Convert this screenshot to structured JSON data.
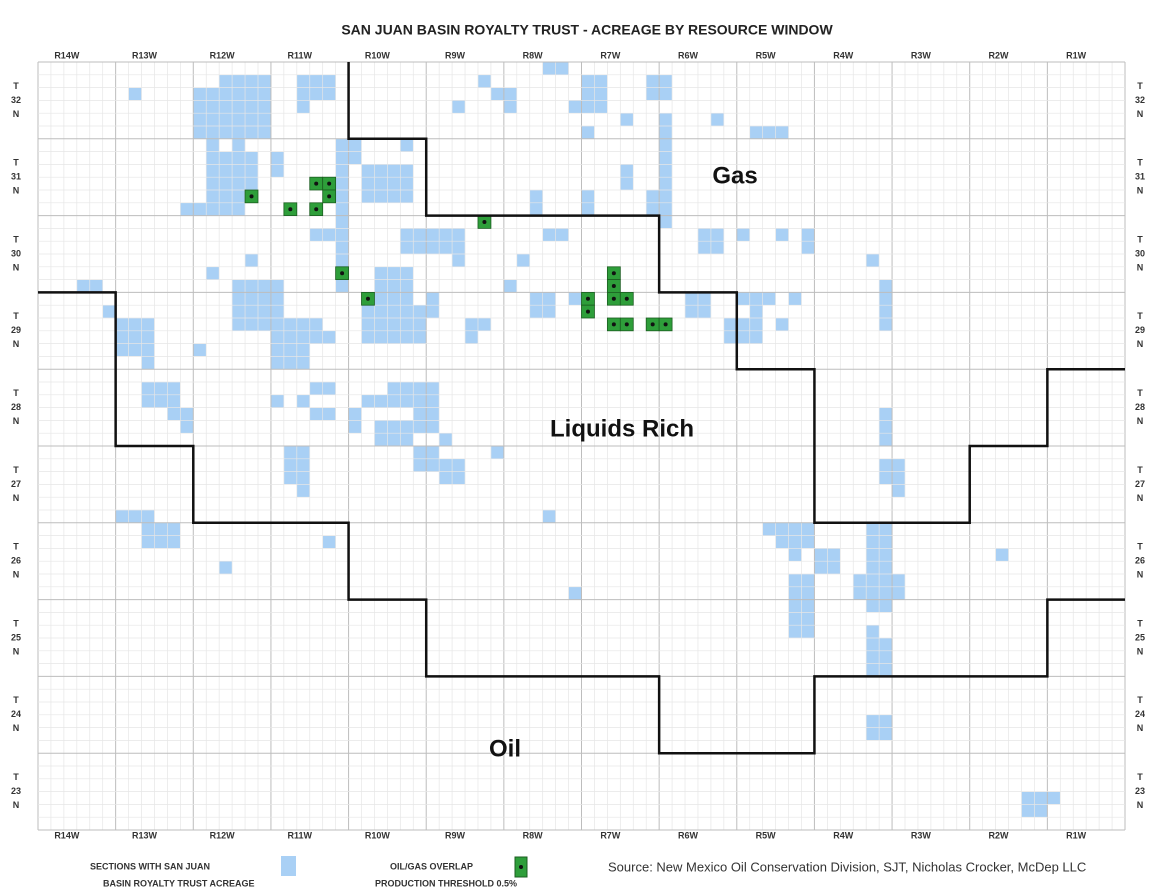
{
  "title": "SAN JUAN BASIN ROYALTY TRUST -  ACREAGE BY RESOURCE WINDOW",
  "ranges": [
    "R14W",
    "R13W",
    "R12W",
    "R11W",
    "R10W",
    "R9W",
    "R8W",
    "R7W",
    "R6W",
    "R5W",
    "R4W",
    "R3W",
    "R2W",
    "R1W"
  ],
  "townships": [
    [
      "T",
      "32",
      "N"
    ],
    [
      "T",
      "31",
      "N"
    ],
    [
      "T",
      "30",
      "N"
    ],
    [
      "T",
      "29",
      "N"
    ],
    [
      "T",
      "28",
      "N"
    ],
    [
      "T",
      "27",
      "N"
    ],
    [
      "T",
      "26",
      "N"
    ],
    [
      "T",
      "25",
      "N"
    ],
    [
      "T",
      "24",
      "N"
    ],
    [
      "T",
      "23",
      "N"
    ]
  ],
  "regions": {
    "gas": "Gas",
    "liquids": "Liquids Rich",
    "oil": "Oil"
  },
  "legend": {
    "acreage": [
      "SECTIONS WITH SAN JUAN",
      "BASIN ROYALTY TRUST ACREAGE"
    ],
    "overlap": [
      "OIL/GAS OVERLAP",
      "PRODUCTION THRESHOLD 0.5%"
    ]
  },
  "source": "Source:  New Mexico Oil Conservation Division, SJT, Nicholas Crocker, McDep LLC"
}
